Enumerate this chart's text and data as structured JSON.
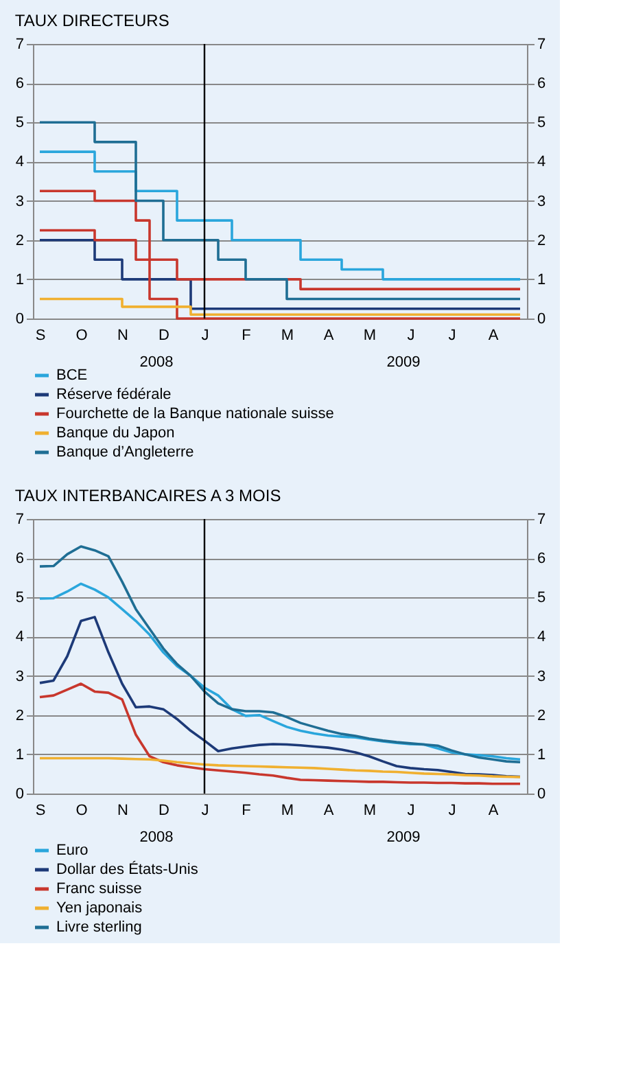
{
  "chart_data": [
    {
      "type": "step",
      "title": "TAUX DIRECTEURS",
      "categories": [
        "S",
        null,
        null,
        "O",
        null,
        null,
        "N",
        null,
        null,
        "D",
        null,
        null,
        "J",
        null,
        null,
        "F",
        null,
        null,
        "M",
        null,
        null,
        "A",
        null,
        null,
        "M",
        null,
        null,
        "J",
        null,
        null,
        "J",
        null,
        null,
        "A",
        null,
        null
      ],
      "ylim": [
        0,
        7
      ],
      "yticks": [
        0,
        1,
        2,
        3,
        4,
        5,
        6,
        7
      ],
      "y2lim": [
        0,
        7
      ],
      "y2ticks": [
        0,
        1,
        2,
        3,
        4,
        5,
        6,
        7
      ],
      "grid": "y",
      "legend": "bottom",
      "line_style": "solid",
      "annotations": [
        "2008",
        "2009"
      ],
      "ref_lines": [
        {
          "axis": "x",
          "value": "J",
          "color": "#000000"
        }
      ],
      "series": [
        {
          "name": "BCE",
          "color": "#2aa6dc",
          "values": [
            4.25,
            4.25,
            4.25,
            4.25,
            3.75,
            3.75,
            3.75,
            3.25,
            3.25,
            3.25,
            2.5,
            2.5,
            2.5,
            2.5,
            2,
            2,
            2,
            2,
            2,
            1.5,
            1.5,
            1.5,
            1.25,
            1.25,
            1.25,
            1,
            1,
            1,
            1,
            1,
            1,
            1,
            1,
            1,
            1,
            1
          ]
        },
        {
          "name": "Réserve fédérale",
          "color": "#1d3a78",
          "values": [
            2,
            2,
            2,
            2,
            1.5,
            1.5,
            1,
            1,
            1,
            1,
            1,
            0.25,
            0.25,
            0.25,
            0.25,
            0.25,
            0.25,
            0.25,
            0.25,
            0.25,
            0.25,
            0.25,
            0.25,
            0.25,
            0.25,
            0.25,
            0.25,
            0.25,
            0.25,
            0.25,
            0.25,
            0.25,
            0.25,
            0.25,
            0.25,
            0.25
          ]
        },
        {
          "name": "Fourchette de la Banque nationale suisse",
          "color": "#c8372d",
          "values": [
            3.25,
            3.25,
            3.25,
            3.25,
            3,
            3,
            3,
            2.5,
            1.5,
            1.5,
            1,
            1,
            1,
            1,
            1,
            1,
            1,
            1,
            1,
            0.75,
            0.75,
            0.75,
            0.75,
            0.75,
            0.75,
            0.75,
            0.75,
            0.75,
            0.75,
            0.75,
            0.75,
            0.75,
            0.75,
            0.75,
            0.75,
            0.75
          ]
        },
        {
          "color": "#c8372d",
          "values": [
            2.25,
            2.25,
            2.25,
            2.25,
            2,
            2,
            2,
            1.5,
            0.5,
            0.5,
            0,
            0,
            0,
            0,
            0,
            0,
            0,
            0,
            0,
            0,
            0,
            0,
            0,
            0,
            0,
            0,
            0,
            0,
            0,
            0,
            0,
            0,
            0,
            0,
            0,
            0
          ]
        },
        {
          "name": "Banque du Japon",
          "color": "#f0b030",
          "values": [
            0.5,
            0.5,
            0.5,
            0.5,
            0.5,
            0.5,
            0.3,
            0.3,
            0.3,
            0.3,
            0.3,
            0.1,
            0.1,
            0.1,
            0.1,
            0.1,
            0.1,
            0.1,
            0.1,
            0.1,
            0.1,
            0.1,
            0.1,
            0.1,
            0.1,
            0.1,
            0.1,
            0.1,
            0.1,
            0.1,
            0.1,
            0.1,
            0.1,
            0.1,
            0.1,
            0.1
          ]
        },
        {
          "name": "Banque d’Angleterre",
          "color": "#1f6e94",
          "values": [
            5,
            5,
            5,
            5,
            4.5,
            4.5,
            4.5,
            3,
            3,
            2,
            2,
            2,
            2,
            1.5,
            1.5,
            1,
            1,
            1,
            0.5,
            0.5,
            0.5,
            0.5,
            0.5,
            0.5,
            0.5,
            0.5,
            0.5,
            0.5,
            0.5,
            0.5,
            0.5,
            0.5,
            0.5,
            0.5,
            0.5,
            0.5
          ]
        }
      ]
    },
    {
      "type": "line",
      "title": "TAUX INTERBANCAIRES A 3 MOIS",
      "categories": [
        "S",
        null,
        null,
        "O",
        null,
        null,
        "N",
        null,
        null,
        "D",
        null,
        null,
        "J",
        null,
        null,
        "F",
        null,
        null,
        "M",
        null,
        null,
        "A",
        null,
        null,
        "M",
        null,
        null,
        "J",
        null,
        null,
        "J",
        null,
        null,
        "A",
        null,
        null
      ],
      "ylim": [
        0,
        7
      ],
      "yticks": [
        0,
        1,
        2,
        3,
        4,
        5,
        6,
        7
      ],
      "y2lim": [
        0,
        7
      ],
      "y2ticks": [
        0,
        1,
        2,
        3,
        4,
        5,
        6,
        7
      ],
      "grid": "y",
      "legend": "bottom",
      "line_style": "solid",
      "annotations": [
        "2008",
        "2009"
      ],
      "ref_lines": [
        {
          "axis": "x",
          "value": "J",
          "color": "#000000"
        }
      ],
      "series": [
        {
          "name": "Euro",
          "color": "#2aa6dc",
          "values": [
            4.97,
            4.98,
            5.15,
            5.35,
            5.2,
            5.0,
            4.7,
            4.4,
            4.05,
            3.6,
            3.25,
            3.0,
            2.7,
            2.5,
            2.15,
            1.98,
            2.0,
            1.85,
            1.7,
            1.6,
            1.53,
            1.48,
            1.45,
            1.43,
            1.38,
            1.33,
            1.29,
            1.26,
            1.25,
            1.15,
            1.05,
            1.0,
            0.98,
            0.95,
            0.9,
            0.87
          ]
        },
        {
          "name": "Dollar des États-Unis",
          "color": "#1d3a78",
          "values": [
            2.82,
            2.88,
            3.5,
            4.4,
            4.5,
            3.6,
            2.8,
            2.2,
            2.22,
            2.15,
            1.9,
            1.6,
            1.35,
            1.08,
            1.15,
            1.2,
            1.24,
            1.26,
            1.25,
            1.23,
            1.2,
            1.17,
            1.12,
            1.05,
            0.95,
            0.82,
            0.7,
            0.65,
            0.62,
            0.6,
            0.55,
            0.5,
            0.49,
            0.47,
            0.44,
            0.43
          ]
        },
        {
          "name": "Franc suisse",
          "color": "#c8372d",
          "values": [
            2.46,
            2.5,
            2.65,
            2.8,
            2.6,
            2.57,
            2.4,
            1.5,
            0.95,
            0.8,
            0.72,
            0.67,
            0.62,
            0.59,
            0.56,
            0.53,
            0.49,
            0.46,
            0.4,
            0.35,
            0.34,
            0.33,
            0.32,
            0.31,
            0.3,
            0.3,
            0.29,
            0.28,
            0.28,
            0.27,
            0.27,
            0.26,
            0.26,
            0.25,
            0.25,
            0.25
          ]
        },
        {
          "name": "Yen japonais",
          "color": "#f0b030",
          "values": [
            0.9,
            0.9,
            0.9,
            0.9,
            0.9,
            0.9,
            0.89,
            0.88,
            0.87,
            0.84,
            0.8,
            0.77,
            0.74,
            0.72,
            0.71,
            0.7,
            0.69,
            0.68,
            0.67,
            0.66,
            0.65,
            0.63,
            0.61,
            0.59,
            0.58,
            0.56,
            0.55,
            0.53,
            0.51,
            0.5,
            0.49,
            0.47,
            0.46,
            0.44,
            0.43,
            0.42
          ]
        },
        {
          "name": "Livre sterling",
          "color": "#1f6e94",
          "values": [
            5.79,
            5.8,
            6.1,
            6.3,
            6.2,
            6.05,
            5.4,
            4.7,
            4.2,
            3.7,
            3.3,
            3.0,
            2.6,
            2.3,
            2.15,
            2.1,
            2.1,
            2.07,
            1.95,
            1.8,
            1.7,
            1.6,
            1.52,
            1.47,
            1.4,
            1.35,
            1.31,
            1.28,
            1.25,
            1.22,
            1.1,
            1.0,
            0.92,
            0.87,
            0.82,
            0.8
          ]
        }
      ]
    }
  ]
}
